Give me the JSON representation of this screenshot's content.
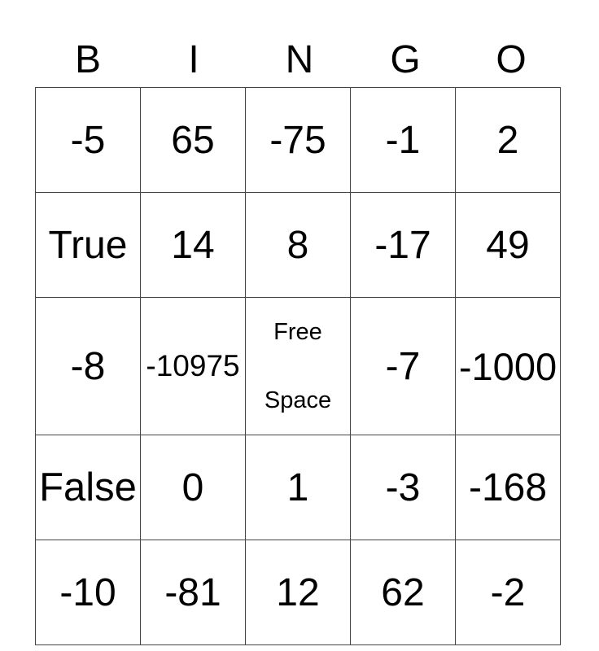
{
  "header": [
    "B",
    "I",
    "N",
    "G",
    "O"
  ],
  "grid": [
    [
      "-5",
      "65",
      "-75",
      "-1",
      "2"
    ],
    [
      "True",
      "14",
      "8",
      "-17",
      "49"
    ],
    [
      "-8",
      "-10975",
      "Free Space",
      "-7",
      "-1000"
    ],
    [
      "False",
      "0",
      "1",
      "-3",
      "-168"
    ],
    [
      "-10",
      "-81",
      "12",
      "62",
      "-2"
    ]
  ],
  "free_space": {
    "line1": "Free",
    "line2": "Space"
  }
}
